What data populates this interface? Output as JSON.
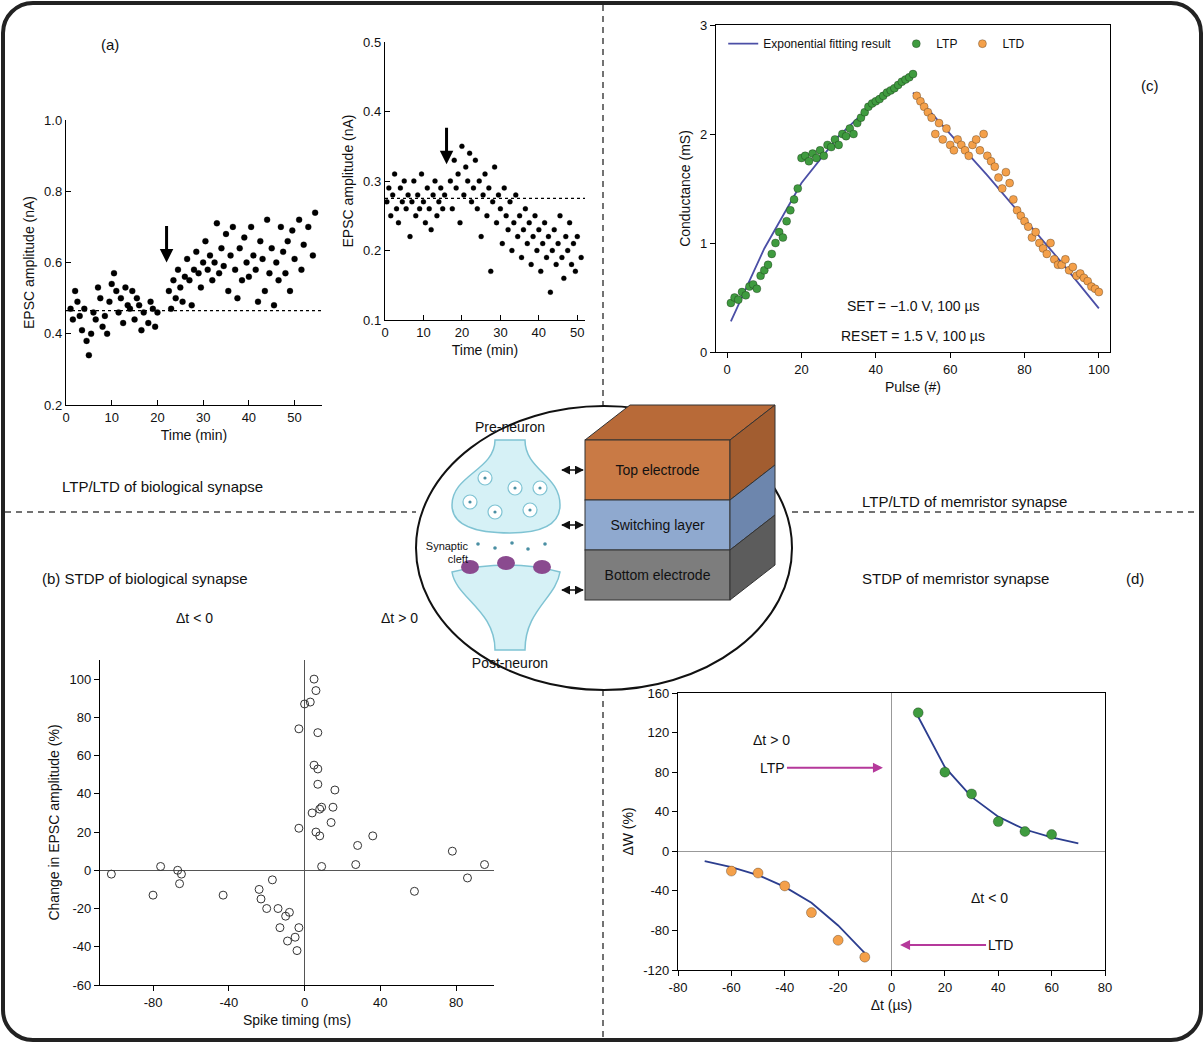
{
  "chart_data": [
    {
      "type": "scatter",
      "panel": "(a)",
      "caption": "LTP/LTD of biological synapse",
      "x_label": "Time (min)",
      "y_label": "EPSC amplitude (nA)",
      "xlim": [
        0,
        56
      ],
      "xticks": [
        0,
        10,
        20,
        30,
        40,
        50
      ],
      "ylim": [
        0.2,
        1.0
      ],
      "yticks": [
        0.2,
        0.4,
        0.6,
        0.8,
        {
          "value": 1.0,
          "label": "1.0"
        }
      ],
      "grid": false,
      "baseline": 0.465,
      "arrow_x": 22,
      "series": [
        {
          "color": "#000000",
          "marker": "circle",
          "x": [
            1,
            1.5,
            2,
            2.5,
            3,
            3.5,
            4,
            4.5,
            5,
            5.5,
            6,
            6.5,
            7,
            7.5,
            8,
            8.5,
            9,
            9.5,
            10,
            10.5,
            11,
            11.5,
            12,
            12.5,
            13,
            13.5,
            14,
            14.5,
            15,
            15.5,
            16,
            16.5,
            17,
            18,
            18.5,
            19,
            19.5,
            20,
            22.5,
            23,
            23.5,
            24,
            24.5,
            25,
            25.5,
            26,
            26.5,
            27,
            27.5,
            28,
            28.5,
            29,
            29.5,
            30,
            30.5,
            31,
            31.5,
            32,
            32.5,
            33,
            33.5,
            34,
            34.5,
            35,
            35.5,
            36,
            36.5,
            37,
            37.5,
            38,
            38.5,
            39,
            39.5,
            40,
            40.5,
            41,
            41.5,
            42,
            42.5,
            43,
            43.5,
            44,
            44.5,
            45,
            45.5,
            46,
            46.5,
            47,
            47.5,
            48,
            48.5,
            49,
            49.5,
            50,
            51,
            51.5,
            52,
            53,
            54,
            54.5
          ],
          "values": [
            0.47,
            0.44,
            0.52,
            0.49,
            0.45,
            0.41,
            0.47,
            0.38,
            0.34,
            0.4,
            0.46,
            0.44,
            0.53,
            0.5,
            0.42,
            0.45,
            0.4,
            0.49,
            0.54,
            0.57,
            0.52,
            0.46,
            0.5,
            0.43,
            0.53,
            0.48,
            0.47,
            0.52,
            0.44,
            0.5,
            0.48,
            0.41,
            0.46,
            0.43,
            0.49,
            0.47,
            0.42,
            0.46,
            0.52,
            0.47,
            0.55,
            0.5,
            0.58,
            0.53,
            0.49,
            0.56,
            0.61,
            0.55,
            0.48,
            0.58,
            0.63,
            0.57,
            0.53,
            0.6,
            0.66,
            0.58,
            0.62,
            0.55,
            0.6,
            0.71,
            0.57,
            0.64,
            0.59,
            0.68,
            0.52,
            0.62,
            0.7,
            0.58,
            0.5,
            0.64,
            0.55,
            0.67,
            0.6,
            0.56,
            0.7,
            0.62,
            0.58,
            0.49,
            0.66,
            0.61,
            0.52,
            0.72,
            0.57,
            0.64,
            0.48,
            0.6,
            0.55,
            0.7,
            0.63,
            0.57,
            0.66,
            0.52,
            0.69,
            0.61,
            0.72,
            0.58,
            0.65,
            0.7,
            0.62,
            0.74
          ]
        }
      ]
    },
    {
      "type": "scatter",
      "x_label": "Time (min)",
      "y_label": "EPSC amplitude (nA)",
      "xlim": [
        0,
        52
      ],
      "xticks": [
        0,
        10,
        20,
        30,
        40,
        50
      ],
      "ylim": [
        0.1,
        0.5
      ],
      "yticks": [
        0.1,
        0.2,
        0.3,
        0.4,
        0.5
      ],
      "grid": false,
      "baseline": 0.275,
      "arrow_x": 16,
      "series": [
        {
          "color": "#000000",
          "marker": "circle",
          "x": [
            0.5,
            1,
            1.5,
            2,
            2.5,
            3,
            3.5,
            4,
            4.5,
            5,
            5.5,
            6,
            6.5,
            7,
            7.5,
            8,
            8.5,
            9,
            9.5,
            10,
            10.5,
            11,
            11.5,
            12,
            12.5,
            13,
            13.5,
            14,
            14.5,
            15,
            15.5,
            17,
            17.5,
            18,
            18.5,
            19,
            19.5,
            20,
            20.5,
            21,
            21.5,
            22,
            22.5,
            23,
            23.5,
            24,
            24.5,
            25,
            25.5,
            26,
            26.5,
            27,
            27.5,
            28,
            28.5,
            29,
            29.5,
            30,
            30.5,
            31,
            31.5,
            32,
            32.5,
            33,
            33.5,
            34,
            34.5,
            35,
            35.5,
            36,
            36.5,
            37,
            37.5,
            38,
            38.5,
            39,
            39.5,
            40,
            40.5,
            41,
            41.5,
            42,
            42.5,
            43,
            43.5,
            44,
            44.5,
            45,
            45.5,
            46,
            46.5,
            47,
            47.5,
            48,
            48.5,
            49,
            49.5,
            50,
            51
          ],
          "values": [
            0.27,
            0.29,
            0.25,
            0.28,
            0.31,
            0.26,
            0.24,
            0.29,
            0.27,
            0.3,
            0.26,
            0.28,
            0.22,
            0.27,
            0.3,
            0.25,
            0.28,
            0.26,
            0.31,
            0.27,
            0.24,
            0.29,
            0.26,
            0.23,
            0.28,
            0.3,
            0.25,
            0.27,
            0.29,
            0.26,
            0.28,
            0.3,
            0.26,
            0.33,
            0.29,
            0.31,
            0.24,
            0.35,
            0.28,
            0.32,
            0.3,
            0.34,
            0.27,
            0.29,
            0.33,
            0.26,
            0.3,
            0.22,
            0.28,
            0.31,
            0.25,
            0.29,
            0.17,
            0.27,
            0.32,
            0.24,
            0.28,
            0.26,
            0.21,
            0.29,
            0.25,
            0.23,
            0.27,
            0.2,
            0.24,
            0.28,
            0.22,
            0.25,
            0.19,
            0.23,
            0.26,
            0.21,
            0.24,
            0.18,
            0.22,
            0.25,
            0.2,
            0.23,
            0.17,
            0.21,
            0.24,
            0.19,
            0.22,
            0.14,
            0.2,
            0.23,
            0.18,
            0.21,
            0.25,
            0.19,
            0.16,
            0.22,
            0.2,
            0.24,
            0.18,
            0.21,
            0.17,
            0.22,
            0.19
          ]
        }
      ]
    },
    {
      "type": "scatter",
      "panel": "(c)",
      "caption": "LTP/LTD of memristor synapse",
      "x_label": "Pulse (#)",
      "y_label": "Conductance (mS)",
      "xlim": [
        -3,
        103
      ],
      "xticks": [
        0,
        20,
        40,
        60,
        80,
        100
      ],
      "ylim": [
        0,
        3
      ],
      "yticks": [
        0,
        1,
        2,
        3
      ],
      "grid": false,
      "legend": "upper left",
      "notes": [
        "SET = −1.0 V, 100 µs",
        "RESET = 1.5 V, 100 µs"
      ],
      "series": [
        {
          "name": "Exponential fitting result",
          "type": "line",
          "color": "#4b4fa6",
          "line_style": "solid",
          "x": [
            1,
            10,
            20,
            30,
            40,
            50
          ],
          "values": [
            0.28,
            0.95,
            1.55,
            1.98,
            2.3,
            2.55
          ]
        },
        {
          "type": "line",
          "color": "#4b4fa6",
          "line_style": "solid",
          "x": [
            50,
            60,
            70,
            80,
            90,
            100
          ],
          "values": [
            2.38,
            2.0,
            1.62,
            1.22,
            0.82,
            0.4
          ]
        },
        {
          "name": "LTP",
          "color": "#3f9b3f",
          "marker": "circle",
          "x": [
            1,
            2,
            3,
            4,
            5,
            6,
            7,
            8,
            9,
            10,
            11,
            12,
            13,
            14,
            15,
            16,
            17,
            18,
            19,
            20,
            21,
            22,
            23,
            24,
            25,
            26,
            27,
            28,
            29,
            30,
            31,
            32,
            33,
            34,
            35,
            36,
            37,
            38,
            39,
            40,
            41,
            42,
            43,
            44,
            45,
            46,
            47,
            48,
            49,
            50
          ],
          "values": [
            0.45,
            0.5,
            0.48,
            0.55,
            0.52,
            0.6,
            0.62,
            0.58,
            0.7,
            0.75,
            0.8,
            0.9,
            1.0,
            1.1,
            1.05,
            1.2,
            1.3,
            1.4,
            1.5,
            1.78,
            1.8,
            1.75,
            1.82,
            1.78,
            1.85,
            1.8,
            1.9,
            1.88,
            1.95,
            1.9,
            2.0,
            1.98,
            2.05,
            2.0,
            2.1,
            2.15,
            2.2,
            2.25,
            2.28,
            2.3,
            2.32,
            2.35,
            2.38,
            2.4,
            2.42,
            2.45,
            2.48,
            2.5,
            2.52,
            2.55
          ]
        },
        {
          "name": "LTD",
          "color": "#f4a04a",
          "marker": "circle",
          "x": [
            51,
            52,
            53,
            54,
            55,
            56,
            57,
            58,
            59,
            60,
            61,
            62,
            63,
            64,
            65,
            66,
            67,
            68,
            69,
            70,
            71,
            72,
            73,
            74,
            75,
            76,
            77,
            78,
            79,
            80,
            81,
            82,
            83,
            84,
            85,
            86,
            87,
            88,
            89,
            90,
            91,
            92,
            93,
            94,
            95,
            96,
            97,
            98,
            99,
            100
          ],
          "values": [
            2.35,
            2.3,
            2.25,
            2.2,
            2.15,
            2.0,
            2.1,
            1.95,
            2.05,
            1.9,
            1.85,
            1.95,
            1.9,
            1.85,
            1.8,
            1.9,
            1.95,
            1.85,
            2.0,
            1.8,
            1.75,
            1.7,
            1.6,
            1.5,
            1.65,
            1.55,
            1.4,
            1.3,
            1.25,
            1.2,
            1.15,
            1.05,
            1.1,
            1.0,
            0.95,
            0.9,
            1.0,
            0.85,
            0.8,
            0.8,
            0.85,
            0.75,
            0.78,
            0.7,
            0.72,
            0.68,
            0.65,
            0.6,
            0.58,
            0.55
          ]
        }
      ]
    },
    {
      "type": "scatter",
      "caption": "(b) STDP of biological synapse",
      "x_label": "Spike timing (ms)",
      "y_label": "Change in EPSC amplitude (%)",
      "xlim": [
        -108,
        100
      ],
      "xticks": [
        -80,
        -40,
        0,
        40,
        80
      ],
      "ylim": [
        -60,
        110
      ],
      "yticks": [
        -60,
        -40,
        -20,
        0,
        20,
        40,
        60,
        80,
        100
      ],
      "grid": false,
      "notes": [
        "Δt < 0",
        "Δt > 0"
      ],
      "series": [
        {
          "color": "#333333",
          "marker": "circle-open",
          "x": [
            -102,
            -80,
            -76,
            -67,
            -66,
            -65,
            -43,
            -24,
            -23,
            -20,
            -17,
            -14,
            -13,
            -10,
            -9,
            -8,
            -5,
            -4,
            -3,
            -3,
            -3,
            0,
            3,
            5,
            6,
            7,
            5,
            7,
            7,
            4,
            6,
            8,
            8,
            9,
            9,
            14,
            15,
            16,
            28,
            27,
            36,
            58,
            78,
            86,
            95
          ],
          "values": [
            -2,
            -13,
            2,
            0,
            -7,
            -2,
            -13,
            -10,
            -15,
            -20,
            -5,
            -20,
            -30,
            -24,
            -37,
            -22,
            -35,
            -42,
            -30,
            74,
            22,
            87,
            88,
            100,
            94,
            72,
            55,
            53,
            45,
            30,
            20,
            32,
            18,
            33,
            2,
            25,
            33,
            42,
            13,
            3,
            18,
            -11,
            10,
            -4,
            3
          ]
        }
      ]
    },
    {
      "type": "scatter",
      "panel": "(d)",
      "caption": "STDP of memristor synapse",
      "x_label": "Δt (µs)",
      "y_label": "ΔW (%)",
      "xlim": [
        -80,
        80
      ],
      "xticks": [
        -80,
        -60,
        -40,
        -20,
        0,
        20,
        40,
        60,
        80
      ],
      "ylim": [
        -120,
        160
      ],
      "yticks": [
        -120,
        -80,
        -40,
        0,
        40,
        80,
        120,
        160
      ],
      "grid": false,
      "notes": [
        "Δt > 0",
        "LTP",
        "Δt < 0",
        "LTD"
      ],
      "series": [
        {
          "type": "line",
          "color": "#2c3e8f",
          "line_style": "solid",
          "x": [
            10,
            20,
            30,
            40,
            50,
            60,
            70
          ],
          "values": [
            136,
            85,
            55,
            35,
            22,
            14,
            8
          ]
        },
        {
          "type": "line",
          "color": "#2c3e8f",
          "line_style": "solid",
          "x": [
            -70,
            -60,
            -50,
            -40,
            -30,
            -20,
            -10
          ],
          "values": [
            -10,
            -16,
            -24,
            -36,
            -52,
            -75,
            -103
          ]
        },
        {
          "color": "#3f9b3f",
          "marker": "circle",
          "x": [
            10,
            20,
            30,
            40,
            50,
            60
          ],
          "values": [
            140,
            80,
            58,
            30,
            20,
            17
          ]
        },
        {
          "color": "#f4a04a",
          "marker": "circle",
          "x": [
            -60,
            -50,
            -40,
            -30,
            -20,
            -10
          ],
          "values": [
            -20,
            -22,
            -35,
            -62,
            -90,
            -107
          ]
        }
      ]
    }
  ],
  "diagram": {
    "pre": "Pre-neuron",
    "post": "Post-neuron",
    "cleft": "Synaptic cleft",
    "layers": [
      "Top electrode",
      "Switching layer",
      "Bottom electrode"
    ]
  }
}
